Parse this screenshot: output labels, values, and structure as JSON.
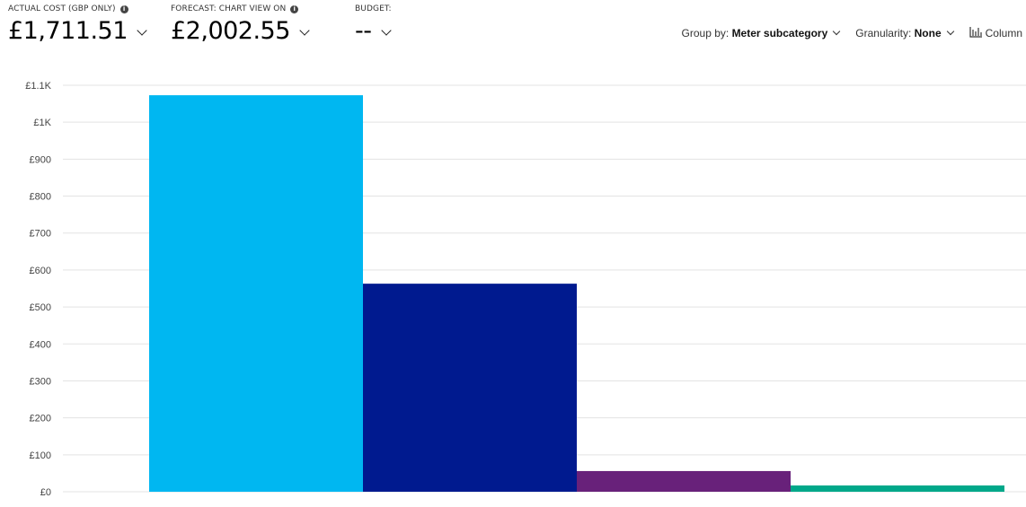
{
  "kpis": [
    {
      "label": "ACTUAL COST (GBP ONLY)",
      "value": "£1,711.51",
      "info": true
    },
    {
      "label": "FORECAST: CHART VIEW ON",
      "value": "£2,002.55",
      "info": true
    },
    {
      "label": "BUDGET:",
      "value": "--",
      "info": false
    }
  ],
  "toolbar": {
    "group_by_label": "Group by:",
    "group_by_value": "Meter subcategory",
    "granularity_label": "Granularity:",
    "granularity_value": "None",
    "chart_type_label": "Column"
  },
  "chart_data": {
    "type": "bar",
    "categories": [
      "",
      "",
      "",
      ""
    ],
    "values": [
      1073,
      563,
      56,
      17
    ],
    "colors": [
      "#00b7f1",
      "#001a8f",
      "#68217a",
      "#00a88a"
    ],
    "yticks": [
      "£0",
      "£100",
      "£200",
      "£300",
      "£400",
      "£500",
      "£600",
      "£700",
      "£800",
      "£900",
      "£1K",
      "£1.1K"
    ],
    "ylim": [
      0,
      1100
    ],
    "grid": true
  }
}
